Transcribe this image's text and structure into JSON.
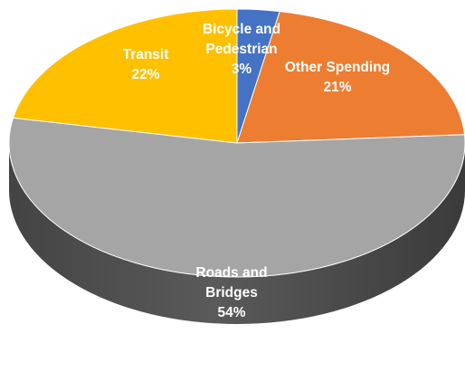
{
  "chart_data": {
    "type": "pie",
    "style": "3d",
    "title": "",
    "legend": "none",
    "slices": [
      {
        "label_lines": [
          "Bicycle and",
          "Pedestrian",
          "3%"
        ],
        "value": 3,
        "color": "#4472c4",
        "side_color": "#2f528f"
      },
      {
        "label_lines": [
          "Other Spending",
          "21%"
        ],
        "value": 21,
        "color": "#ed7d31",
        "side_color": "#ae5a21"
      },
      {
        "label_lines": [
          "Roads and",
          "Bridges",
          "54%"
        ],
        "value": 54,
        "color": "#a5a5a5",
        "side_color": "#5a5a5a"
      },
      {
        "label_lines": [
          "Transit",
          "22%"
        ],
        "value": 22,
        "color": "#ffc000",
        "side_color": "#bf9000"
      }
    ]
  }
}
